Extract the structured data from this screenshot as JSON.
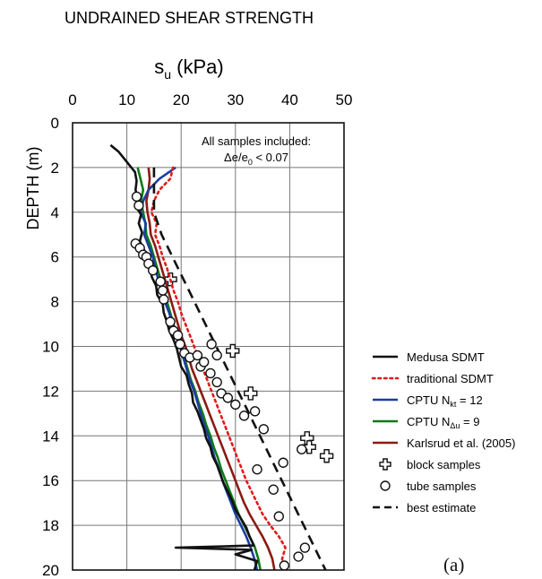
{
  "chart_data": {
    "type": "line",
    "title": "UNDRAINED SHEAR STRENGTH",
    "xlabel": "s_u (kPa)",
    "xlabel_symbol": "s",
    "xlabel_subscript": "u",
    "xlabel_unit": " (kPa)",
    "ylabel": "DEPTH (m)",
    "xlim": [
      0,
      50
    ],
    "ylim": [
      0,
      20
    ],
    "y_inverted": true,
    "x_axis_position": "top",
    "xticks": [
      "0",
      "10",
      "20",
      "30",
      "40",
      "50"
    ],
    "yticks": [
      "0",
      "2",
      "4",
      "6",
      "8",
      "10",
      "12",
      "14",
      "16",
      "18",
      "20"
    ],
    "grid": true,
    "legend_position": "right",
    "panel_label": "(a)",
    "annotation": {
      "line1": "All samples included:",
      "line2_symbol": "Δe/e",
      "line2_subscript": "0",
      "line2_rest": " < 0.07"
    },
    "series": [
      {
        "name": "Medusa SDMT",
        "label_main": "Medusa SDMT",
        "label_sub": "",
        "label_after": "",
        "color": "#111111",
        "style": "solid",
        "points": [
          [
            7,
            1.0
          ],
          [
            8.5,
            1.3
          ],
          [
            9.5,
            1.6
          ],
          [
            10.5,
            1.9
          ],
          [
            11.5,
            2.2
          ],
          [
            11.8,
            2.6
          ],
          [
            11.6,
            3.0
          ],
          [
            12.0,
            3.4
          ],
          [
            11.8,
            3.8
          ],
          [
            12.6,
            4.1
          ],
          [
            12.2,
            4.5
          ],
          [
            12.8,
            4.9
          ],
          [
            12.4,
            5.3
          ],
          [
            13.2,
            5.7
          ],
          [
            13.6,
            6.1
          ],
          [
            14.3,
            6.5
          ],
          [
            14.6,
            6.9
          ],
          [
            15.4,
            7.3
          ],
          [
            15.6,
            7.7
          ],
          [
            16.6,
            8.1
          ],
          [
            16.8,
            8.5
          ],
          [
            17.4,
            8.9
          ],
          [
            17.8,
            9.3
          ],
          [
            18.6,
            9.7
          ],
          [
            19.2,
            10.1
          ],
          [
            19.6,
            10.5
          ],
          [
            20.0,
            10.9
          ],
          [
            21.0,
            11.3
          ],
          [
            21.4,
            11.7
          ],
          [
            22.0,
            12.1
          ],
          [
            22.2,
            12.5
          ],
          [
            23.0,
            12.9
          ],
          [
            23.6,
            13.3
          ],
          [
            24.2,
            13.7
          ],
          [
            24.6,
            14.1
          ],
          [
            25.4,
            14.5
          ],
          [
            25.8,
            14.9
          ],
          [
            26.6,
            15.3
          ],
          [
            27.2,
            15.7
          ],
          [
            27.8,
            16.1
          ],
          [
            28.6,
            16.5
          ],
          [
            29.4,
            16.9
          ],
          [
            30.0,
            17.3
          ],
          [
            31.0,
            17.7
          ],
          [
            32.0,
            18.1
          ],
          [
            32.6,
            18.5
          ],
          [
            33.4,
            18.9
          ],
          [
            19.0,
            19.0
          ],
          [
            33.0,
            19.1
          ],
          [
            30.0,
            19.3
          ],
          [
            34.0,
            19.6
          ],
          [
            33.5,
            20.0
          ]
        ]
      },
      {
        "name": "traditional SDMT",
        "label_main": "traditional SDMT",
        "label_sub": "",
        "label_after": "",
        "color": "#e3191b",
        "style": "dotted",
        "points": [
          [
            18.5,
            2.0
          ],
          [
            18.0,
            2.5
          ],
          [
            16.0,
            3.0
          ],
          [
            15.0,
            3.5
          ],
          [
            14.5,
            4.0
          ],
          [
            15.5,
            4.5
          ],
          [
            15.2,
            5.0
          ],
          [
            16.0,
            5.5
          ],
          [
            16.6,
            6.0
          ],
          [
            17.4,
            6.5
          ],
          [
            18.0,
            7.0
          ],
          [
            18.6,
            7.5
          ],
          [
            19.4,
            8.0
          ],
          [
            20.0,
            8.5
          ],
          [
            20.8,
            9.0
          ],
          [
            21.6,
            9.5
          ],
          [
            22.4,
            10.0
          ],
          [
            23.2,
            10.5
          ],
          [
            24.0,
            11.0
          ],
          [
            24.8,
            11.5
          ],
          [
            25.6,
            12.0
          ],
          [
            26.4,
            12.5
          ],
          [
            27.2,
            13.0
          ],
          [
            28.0,
            13.5
          ],
          [
            28.8,
            14.0
          ],
          [
            29.6,
            14.5
          ],
          [
            30.4,
            15.0
          ],
          [
            31.2,
            15.5
          ],
          [
            32.0,
            16.0
          ],
          [
            33.0,
            16.5
          ],
          [
            34.0,
            17.0
          ],
          [
            35.0,
            17.5
          ],
          [
            36.4,
            18.0
          ],
          [
            38.0,
            18.5
          ],
          [
            39.2,
            19.0
          ],
          [
            38.6,
            19.5
          ],
          [
            39.0,
            20.0
          ]
        ]
      },
      {
        "name": "CPTU N_kt = 12",
        "label_main": "CPTU N",
        "label_sub": "kt",
        "label_after": " = 12",
        "color": "#1a3ea0",
        "style": "solid",
        "points": [
          [
            19.0,
            2.0
          ],
          [
            16.0,
            2.5
          ],
          [
            14.0,
            3.0
          ],
          [
            13.0,
            3.5
          ],
          [
            12.5,
            4.0
          ],
          [
            13.5,
            4.5
          ],
          [
            13.2,
            5.0
          ],
          [
            14.0,
            5.5
          ],
          [
            14.8,
            6.0
          ],
          [
            15.2,
            6.5
          ],
          [
            15.8,
            7.0
          ],
          [
            16.4,
            7.5
          ],
          [
            17.0,
            8.0
          ],
          [
            17.8,
            8.5
          ],
          [
            18.4,
            9.0
          ],
          [
            19.0,
            9.5
          ],
          [
            19.8,
            10.0
          ],
          [
            20.4,
            10.5
          ],
          [
            21.0,
            11.0
          ],
          [
            21.6,
            11.5
          ],
          [
            22.4,
            12.0
          ],
          [
            23.0,
            12.5
          ],
          [
            23.6,
            13.0
          ],
          [
            24.2,
            13.5
          ],
          [
            25.0,
            14.0
          ],
          [
            25.6,
            14.5
          ],
          [
            26.2,
            15.0
          ],
          [
            27.0,
            15.5
          ],
          [
            27.6,
            16.0
          ],
          [
            28.4,
            16.5
          ],
          [
            29.2,
            17.0
          ],
          [
            30.0,
            17.5
          ],
          [
            31.0,
            18.0
          ],
          [
            32.0,
            18.5
          ],
          [
            32.8,
            19.0
          ],
          [
            33.5,
            19.5
          ],
          [
            34.0,
            20.0
          ]
        ]
      },
      {
        "name": "CPTU N_Δu = 9",
        "label_main": "CPTU N",
        "label_sub": "Δu",
        "label_after": " = 9",
        "color": "#0f7a17",
        "style": "solid",
        "points": [
          [
            12.0,
            2.0
          ],
          [
            12.5,
            2.5
          ],
          [
            13.0,
            3.0
          ],
          [
            12.6,
            3.5
          ],
          [
            13.0,
            4.0
          ],
          [
            13.4,
            4.5
          ],
          [
            13.6,
            5.0
          ],
          [
            14.4,
            5.5
          ],
          [
            15.0,
            6.0
          ],
          [
            15.6,
            6.5
          ],
          [
            16.2,
            7.0
          ],
          [
            16.8,
            7.5
          ],
          [
            17.4,
            8.0
          ],
          [
            18.0,
            8.5
          ],
          [
            18.6,
            9.0
          ],
          [
            19.2,
            9.5
          ],
          [
            20.0,
            10.0
          ],
          [
            20.6,
            10.5
          ],
          [
            21.2,
            11.0
          ],
          [
            21.8,
            11.5
          ],
          [
            22.6,
            12.0
          ],
          [
            23.2,
            12.5
          ],
          [
            24.0,
            13.0
          ],
          [
            24.6,
            13.5
          ],
          [
            25.4,
            14.0
          ],
          [
            26.0,
            14.5
          ],
          [
            26.8,
            15.0
          ],
          [
            27.4,
            15.5
          ],
          [
            28.2,
            16.0
          ],
          [
            29.0,
            16.5
          ],
          [
            29.8,
            17.0
          ],
          [
            30.6,
            17.5
          ],
          [
            31.6,
            18.0
          ],
          [
            32.6,
            18.5
          ],
          [
            33.6,
            19.0
          ],
          [
            34.2,
            19.5
          ],
          [
            34.6,
            20.0
          ]
        ]
      },
      {
        "name": "Karlsrud et al. (2005)",
        "label_main": "Karlsrud et al. (2005)",
        "label_sub": "",
        "label_after": "",
        "color": "#8b1a12",
        "style": "solid",
        "points": [
          [
            14.0,
            2.0
          ],
          [
            14.2,
            2.5
          ],
          [
            14.0,
            3.0
          ],
          [
            13.6,
            3.5
          ],
          [
            13.8,
            4.0
          ],
          [
            14.2,
            4.5
          ],
          [
            14.4,
            5.0
          ],
          [
            15.2,
            5.5
          ],
          [
            15.8,
            6.0
          ],
          [
            16.4,
            6.5
          ],
          [
            17.0,
            7.0
          ],
          [
            17.6,
            7.5
          ],
          [
            18.2,
            8.0
          ],
          [
            18.8,
            8.5
          ],
          [
            19.4,
            9.0
          ],
          [
            20.0,
            9.5
          ],
          [
            20.8,
            10.0
          ],
          [
            21.4,
            10.5
          ],
          [
            22.0,
            11.0
          ],
          [
            22.8,
            11.5
          ],
          [
            23.6,
            12.0
          ],
          [
            24.4,
            12.5
          ],
          [
            25.2,
            13.0
          ],
          [
            26.0,
            13.5
          ],
          [
            26.8,
            14.0
          ],
          [
            27.6,
            14.5
          ],
          [
            28.4,
            15.0
          ],
          [
            29.2,
            15.5
          ],
          [
            30.0,
            16.0
          ],
          [
            30.8,
            16.5
          ],
          [
            31.6,
            17.0
          ],
          [
            32.6,
            17.5
          ],
          [
            33.8,
            18.0
          ],
          [
            35.0,
            18.5
          ],
          [
            36.0,
            19.0
          ],
          [
            36.8,
            19.5
          ],
          [
            37.2,
            20.0
          ]
        ]
      },
      {
        "name": "block samples",
        "label_main": "block samples",
        "label_sub": "",
        "label_after": "",
        "color": "#111111",
        "style": "marker-cross",
        "points": [
          [
            18.0,
            7.0
          ],
          [
            29.5,
            10.2
          ],
          [
            32.8,
            12.1
          ],
          [
            43.2,
            14.1
          ],
          [
            43.6,
            14.5
          ],
          [
            46.8,
            14.9
          ]
        ]
      },
      {
        "name": "tube samples",
        "label_main": "tube samples",
        "label_sub": "",
        "label_after": "",
        "color": "#111111",
        "style": "marker-circle",
        "points": [
          [
            11.8,
            3.3
          ],
          [
            12.2,
            3.7
          ],
          [
            11.6,
            5.4
          ],
          [
            12.4,
            5.6
          ],
          [
            13.0,
            5.9
          ],
          [
            13.6,
            6.0
          ],
          [
            14.0,
            6.3
          ],
          [
            14.8,
            6.6
          ],
          [
            16.2,
            7.1
          ],
          [
            16.6,
            7.5
          ],
          [
            16.8,
            7.9
          ],
          [
            18.0,
            8.9
          ],
          [
            18.6,
            9.3
          ],
          [
            19.4,
            9.5
          ],
          [
            19.8,
            9.9
          ],
          [
            20.6,
            10.3
          ],
          [
            21.6,
            10.5
          ],
          [
            23.0,
            10.4
          ],
          [
            23.6,
            10.9
          ],
          [
            24.2,
            10.7
          ],
          [
            25.6,
            9.9
          ],
          [
            26.6,
            10.4
          ],
          [
            25.4,
            11.2
          ],
          [
            26.6,
            11.6
          ],
          [
            27.4,
            12.1
          ],
          [
            28.6,
            12.3
          ],
          [
            30.0,
            12.6
          ],
          [
            31.6,
            13.1
          ],
          [
            33.6,
            12.9
          ],
          [
            35.2,
            13.7
          ],
          [
            34.0,
            15.5
          ],
          [
            38.8,
            15.2
          ],
          [
            42.2,
            14.6
          ],
          [
            37.0,
            16.4
          ],
          [
            38.0,
            17.6
          ],
          [
            42.8,
            19.0
          ],
          [
            39.0,
            19.8
          ],
          [
            41.6,
            19.4
          ]
        ]
      },
      {
        "name": "best estimate",
        "label_main": "best estimate",
        "label_sub": "",
        "label_after": "",
        "color": "#111111",
        "style": "dashed",
        "points": [
          [
            15.0,
            2.0
          ],
          [
            15.0,
            4.0
          ],
          [
            16.4,
            5.0
          ],
          [
            46.6,
            20.0
          ]
        ]
      }
    ]
  }
}
